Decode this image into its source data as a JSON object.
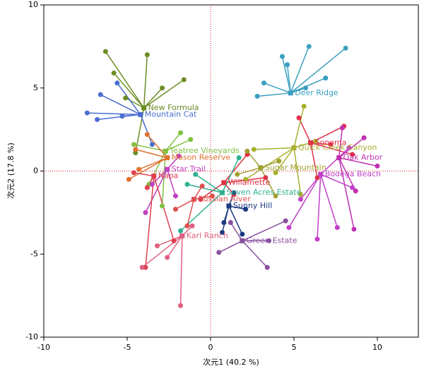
{
  "chart_data": {
    "type": "biplot",
    "x_label": "次元1 (40.2 %)",
    "y_label": "次元2 (17.8 %)",
    "xlim": [
      -10,
      12.46
    ],
    "ylim": [
      -10,
      10
    ],
    "xticks": [
      -10,
      -5,
      0,
      5,
      10
    ],
    "yticks": [
      -10,
      -5,
      0,
      5,
      10
    ],
    "reference_color": "#d02020",
    "series": [
      {
        "name": "Deer Ridge",
        "color": "#3a9fc0",
        "center": [
          4.8,
          4.7
        ],
        "x": [
          5.9,
          8.1,
          3.2,
          4.6,
          4.3,
          2.8,
          6.9,
          5.7
        ],
        "y": [
          7.5,
          7.4,
          5.3,
          6.4,
          6.9,
          4.5,
          5.6,
          5.0
        ]
      },
      {
        "name": "New Formula",
        "color": "#6b8e23",
        "center": [
          -4,
          3.8
        ],
        "x": [
          -6.3,
          -5.8,
          -3.8,
          -1.6,
          -5.1,
          -2.9,
          -4.5
        ],
        "y": [
          7.2,
          5.9,
          7,
          5.5,
          4.4,
          5,
          1.1
        ]
      },
      {
        "name": "Mountain Cat",
        "color": "#4a6fd0",
        "center": [
          -4.2,
          3.4
        ],
        "x": [
          -7.4,
          -6.8,
          -5.3,
          -6.6,
          -5.6,
          -3.5
        ],
        "y": [
          3.5,
          3.1,
          3.3,
          4.6,
          5.3,
          1.6
        ]
      },
      {
        "name": "Sonoma",
        "color": "#e0304a",
        "center": [
          6,
          1.7
        ],
        "x": [
          8.0,
          7.2,
          8.5,
          6.4,
          5.3
        ],
        "y": [
          2.7,
          1.6,
          1.0,
          -0.4,
          3.2
        ]
      },
      {
        "name": "Quick Creek Canyon",
        "color": "#a8b030",
        "center": [
          5,
          1.4
        ],
        "x": [
          2.6,
          3.9,
          5.4,
          6.3,
          2.1,
          5.6
        ],
        "y": [
          1.3,
          -0.1,
          -1.4,
          1.8,
          -0.5,
          3.9
        ]
      },
      {
        "name": "Oak Arbor",
        "color": "#c030b0",
        "center": [
          7.7,
          0.8
        ],
        "x": [
          9.2,
          8.7,
          7.9,
          10.0,
          8.6
        ],
        "y": [
          2.0,
          -1.2,
          2.6,
          0.3,
          -3.5
        ]
      },
      {
        "name": "Bodega Beach",
        "color": "#c040c8",
        "center": [
          6.6,
          -0.2
        ],
        "x": [
          5.4,
          8.5,
          7.6,
          6.4,
          4.7,
          8.3
        ],
        "y": [
          -1.7,
          -1.0,
          -3.4,
          -4.1,
          -3.4,
          1.4
        ]
      },
      {
        "name": "Teatree Vineyards",
        "color": "#80c040",
        "center": [
          -2.7,
          1.2
        ],
        "x": [
          -4.6,
          -3.7,
          -1.8,
          -2.9,
          -1.2
        ],
        "y": [
          1.6,
          -0.8,
          2.3,
          -2.1,
          1.9
        ]
      },
      {
        "name": "Mason Reserve",
        "color": "#e07030",
        "center": [
          -2.6,
          0.8
        ],
        "x": [
          -4.9,
          -4.5,
          -3.8,
          -4.3
        ],
        "y": [
          -0.5,
          1.3,
          2.2,
          0.1
        ]
      },
      {
        "name": "Star Trail",
        "color": "#c040c0",
        "center": [
          -2.6,
          0.1
        ],
        "x": [
          -3.5,
          -1.9,
          -3.9,
          -2.1
        ],
        "y": [
          -0.8,
          0.9,
          -2.5,
          -1.5
        ]
      },
      {
        "name": "Napa",
        "color": "#e04050",
        "center": [
          -3.4,
          -0.3
        ],
        "x": [
          -4.6,
          -3.8,
          -3.9,
          -2.2
        ],
        "y": [
          -0.1,
          -1.0,
          -5.8,
          -4.2
        ]
      },
      {
        "name": "Willamette",
        "color": "#e03040",
        "center": [
          0.8,
          -0.7
        ],
        "x": [
          2.2,
          -0.6,
          1.4,
          3.3
        ],
        "y": [
          1.0,
          -1.7,
          -1.4,
          -0.4
        ]
      },
      {
        "name": "Seven Acres Estate",
        "color": "#30b090",
        "center": [
          0.7,
          -1.3
        ],
        "x": [
          -0.9,
          -1.8,
          1.7,
          -1.4
        ],
        "y": [
          -0.2,
          -3.6,
          0.8,
          -0.8
        ]
      },
      {
        "name": "Sunny Hill",
        "color": "#1a3a80",
        "center": [
          1.1,
          -2.1
        ],
        "x": [
          1.4,
          0.7,
          1.9,
          2.1,
          0.8
        ],
        "y": [
          -1.3,
          -3.7,
          -3.8,
          -2.3,
          -3.1
        ]
      },
      {
        "name": "Russian River",
        "color": "#e05050",
        "center": [
          -1,
          -1.7
        ],
        "x": [
          -2.1,
          -0.5,
          -1.4,
          0.1
        ],
        "y": [
          -2.3,
          -0.9,
          -3.3,
          -1.5
        ]
      },
      {
        "name": "Green Estate",
        "color": "#8a50a0",
        "center": [
          1.9,
          -4.2
        ],
        "x": [
          3.4,
          4.5,
          0.5,
          1.2,
          3.5
        ],
        "y": [
          -5.8,
          -3.0,
          -4.9,
          -3.1,
          -4.2
        ]
      },
      {
        "name": "Karl Ranch",
        "color": "#e06080",
        "center": [
          -1.7,
          -3.9
        ],
        "x": [
          -3.2,
          -4.1,
          -1.8,
          -1.1,
          -2.6
        ],
        "y": [
          -4.5,
          -5.8,
          -8.1,
          -3.3,
          -5.2
        ]
      },
      {
        "name": "Sugar Mountain",
        "color": "#a0a030",
        "center": [
          3,
          0.2
        ],
        "x": [
          4.1,
          1.6,
          3.9,
          2.2
        ],
        "y": [
          0.6,
          -0.2,
          -1.5,
          1.2
        ]
      }
    ]
  }
}
